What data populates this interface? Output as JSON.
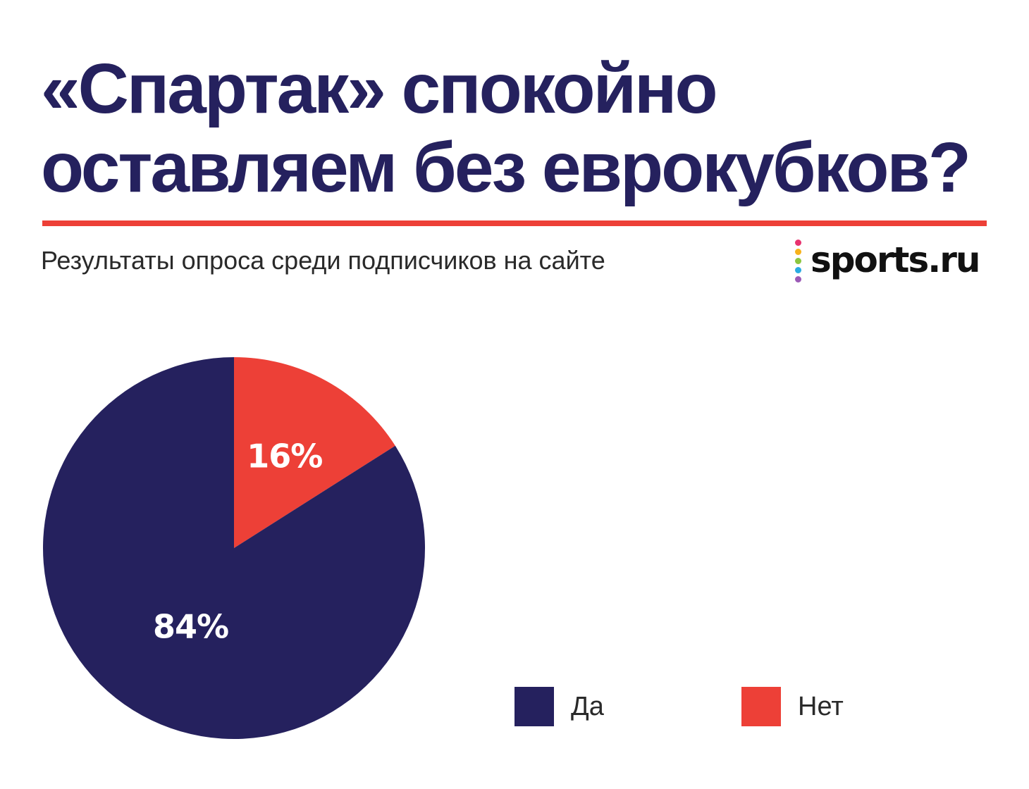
{
  "header": {
    "title_line1": "«Спартак» спокойно",
    "title_line2": "оставляем без еврокубков?",
    "subtitle": "Результаты опроса среди подписчиков на сайте",
    "logo_text": "sports.ru",
    "logo_dot_colors": [
      "#e8336f",
      "#f7b21b",
      "#8cc63f",
      "#29abe2",
      "#9b59b6"
    ]
  },
  "colors": {
    "title": "#25215e",
    "accent": "#ed4037",
    "series_yes": "#25215e",
    "series_no": "#ed4037"
  },
  "chart_data": {
    "type": "pie",
    "title": "«Спартак» спокойно оставляем без еврокубков?",
    "subtitle": "Результаты опроса среди подписчиков на сайте",
    "legend_position": "bottom-right",
    "slices": [
      {
        "label": "Нет",
        "value": 16,
        "display": "16%",
        "color": "#ed4037"
      },
      {
        "label": "Да",
        "value": 84,
        "display": "84%",
        "color": "#25215e"
      }
    ]
  },
  "legend": [
    {
      "label": "Да",
      "color": "#25215e"
    },
    {
      "label": "Нет",
      "color": "#ed4037"
    }
  ]
}
